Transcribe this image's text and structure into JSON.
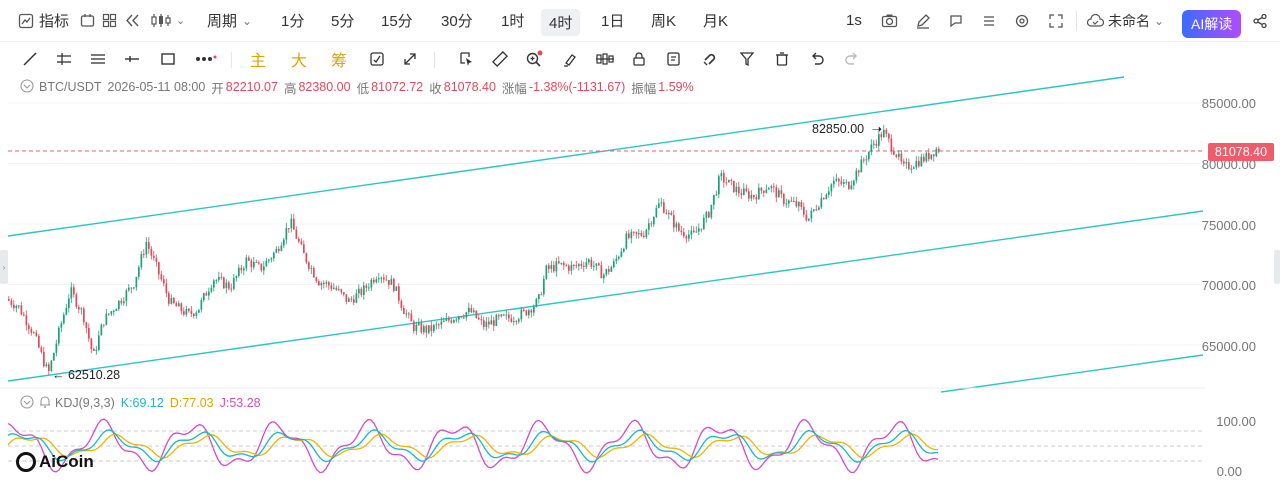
{
  "topbar": {
    "indicator_label": "指标",
    "period_label": "周期",
    "periods": [
      "1分",
      "5分",
      "15分",
      "30分",
      "1时",
      "4时",
      "1日",
      "周K",
      "月K"
    ],
    "active_period": "4时",
    "interval_1s": "1s",
    "chart_name": "未命名",
    "ai_button": "AI解读"
  },
  "drawbar": {
    "text_tools": [
      "主",
      "大",
      "筹"
    ]
  },
  "info": {
    "symbol": "BTC/USDT",
    "datetime": "2026-05-11 08:00",
    "open_label": "开",
    "open": "82210.07",
    "high_label": "高",
    "high": "82380.00",
    "low_label": "低",
    "low": "81072.72",
    "close_label": "收",
    "close": "81078.40",
    "change_label": "涨幅",
    "change": "-1.38%(-1131.67)",
    "amp_label": "振幅",
    "amp": "1.59%"
  },
  "price_axis": {
    "labels": [
      "85000.00",
      "80000.00",
      "75000.00",
      "70000.00",
      "65000.00"
    ],
    "current_price": "81078.40"
  },
  "annotations": {
    "high_mark": "82850.00",
    "low_mark": "62510.28"
  },
  "kdj": {
    "name": "KDJ(9,3,3)",
    "k": "K:69.12",
    "d": "D:77.03",
    "j": "J:53.28",
    "axis": [
      "100.00",
      "0.00"
    ]
  },
  "logo": "AiCoin",
  "colors": {
    "up": "#1aa37a",
    "down": "#e24a5a",
    "channel": "#2cc5c5",
    "k_line": "#18b6c9",
    "d_line": "#f0b400",
    "j_line": "#d64bc4",
    "accent": "#3b6bff"
  }
}
